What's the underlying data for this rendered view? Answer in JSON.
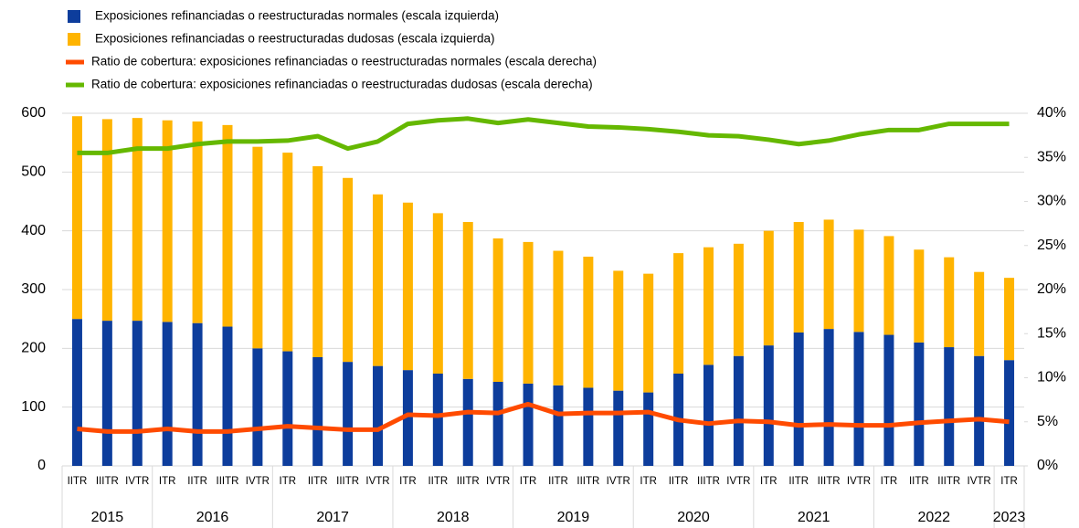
{
  "chart_data": {
    "type": "bar_line",
    "groups": [
      {
        "label": "2015",
        "categories": [
          "IITR",
          "IIITR",
          "IVTR"
        ]
      },
      {
        "label": "2016",
        "categories": [
          "ITR",
          "IITR",
          "IIITR",
          "IVTR"
        ]
      },
      {
        "label": "2017",
        "categories": [
          "ITR",
          "IITR",
          "IIITR",
          "IVTR"
        ]
      },
      {
        "label": "2018",
        "categories": [
          "ITR",
          "IITR",
          "IIITR",
          "IVTR"
        ]
      },
      {
        "label": "2019",
        "categories": [
          "ITR",
          "IITR",
          "IIITR",
          "IVTR"
        ]
      },
      {
        "label": "2020",
        "categories": [
          "ITR",
          "IITR",
          "IIITR",
          "IVTR"
        ]
      },
      {
        "label": "2021",
        "categories": [
          "ITR",
          "IITR",
          "IIITR",
          "IVTR"
        ]
      },
      {
        "label": "2022",
        "categories": [
          "ITR",
          "IITR",
          "IIITR",
          "IVTR"
        ]
      },
      {
        "label": "2023",
        "categories": [
          "ITR"
        ]
      }
    ],
    "series": [
      {
        "name": "Exposiciones refinanciadas o reestructuradas normales (escala izquierda)",
        "type": "bar",
        "color": "#0d3d9c",
        "values": [
          250,
          247,
          247,
          245,
          243,
          237,
          200,
          195,
          185,
          177,
          170,
          163,
          157,
          148,
          143,
          140,
          137,
          133,
          128,
          125,
          157,
          172,
          187,
          205,
          227,
          233,
          228,
          223,
          210,
          202,
          187,
          180
        ]
      },
      {
        "name": "Exposiciones refinanciadas o reestructuradas dudosas (escala izquierda)",
        "type": "bar",
        "color": "#ffb400",
        "values": [
          345,
          343,
          345,
          343,
          343,
          343,
          343,
          338,
          325,
          313,
          292,
          285,
          273,
          267,
          244,
          241,
          229,
          223,
          204,
          202,
          205,
          200,
          191,
          195,
          188,
          186,
          174,
          168,
          158,
          153,
          143,
          140
        ]
      },
      {
        "name": "Ratio de cobertura: exposiciones refinanciadas o reestructuradas normales (escala derecha)",
        "type": "line",
        "axis": "y2",
        "color": "#ff4b00",
        "values": [
          4.2,
          3.9,
          3.9,
          4.2,
          3.9,
          3.9,
          4.2,
          4.5,
          4.3,
          4.1,
          4.1,
          5.8,
          5.7,
          6.1,
          6,
          7,
          5.9,
          6,
          6,
          6.1,
          5.2,
          4.8,
          5.1,
          5,
          4.6,
          4.7,
          4.6,
          4.6,
          4.9,
          5.1,
          5.3,
          5
        ]
      },
      {
        "name": "Ratio de cobertura: exposiciones refinanciadas o reestructuradas dudosas (escala derecha)",
        "type": "line",
        "axis": "y2",
        "color": "#65b800",
        "values": [
          35.5,
          35.5,
          36,
          36,
          36.5,
          36.8,
          36.8,
          36.9,
          37.4,
          36,
          36.8,
          38.8,
          39.2,
          39.4,
          38.9,
          39.3,
          38.9,
          38.5,
          38.4,
          38.2,
          37.9,
          37.5,
          37.4,
          37,
          36.5,
          36.9,
          37.6,
          38.1,
          38.1,
          38.8,
          38.8,
          38.8
        ]
      }
    ],
    "ylim": [
      0,
      600
    ],
    "yticks": [
      0,
      100,
      200,
      300,
      400,
      500,
      600
    ],
    "y2lim": [
      0,
      40
    ],
    "y2ticks": [
      {
        "value": 0,
        "label": "0%"
      },
      {
        "value": 5,
        "label": "5%"
      },
      {
        "value": 10,
        "label": "10%"
      },
      {
        "value": 15,
        "label": "15%"
      },
      {
        "value": 20,
        "label": "20%"
      },
      {
        "value": 25,
        "label": "25%"
      },
      {
        "value": 30,
        "label": "30%"
      },
      {
        "value": 35,
        "label": "35%"
      },
      {
        "value": 40,
        "label": "40%"
      }
    ],
    "grid": true,
    "legend": "top-left"
  }
}
